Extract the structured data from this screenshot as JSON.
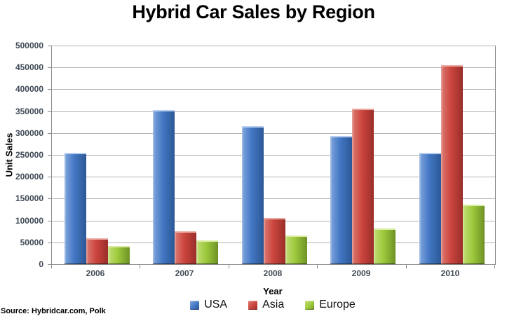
{
  "source_note": "Source: Hybridcar.com, Polk",
  "chart_data": {
    "type": "bar",
    "title": "Hybrid Car Sales by Region",
    "xlabel": "Year",
    "ylabel": "Unit Sales",
    "categories": [
      "2006",
      "2007",
      "2008",
      "2009",
      "2010"
    ],
    "series": [
      {
        "name": "USA",
        "color": "#4377c4",
        "color_light": "#7fa5dc",
        "color_dark": "#2b5795",
        "color_top": "#b5cdf0",
        "values": [
          255000,
          353000,
          315000,
          293000,
          255000
        ]
      },
      {
        "name": "Asia",
        "color": "#cb453e",
        "color_light": "#dc7a71",
        "color_dark": "#9a2e2a",
        "color_top": "#eba8a0",
        "values": [
          60000,
          75000,
          105000,
          355000,
          455000
        ]
      },
      {
        "name": "Europe",
        "color": "#9cc93c",
        "color_light": "#c3de76",
        "color_dark": "#6e9226",
        "color_top": "#d9eb9e",
        "values": [
          42000,
          54000,
          65000,
          82000,
          137000
        ]
      }
    ],
    "ylim": [
      0,
      500000
    ],
    "ytick_step": 50000,
    "yticks": [
      0,
      50000,
      100000,
      150000,
      200000,
      250000,
      300000,
      350000,
      400000,
      450000,
      500000
    ],
    "grid": true,
    "legend_position": "bottom",
    "grid_color": "#b3b3b3",
    "axis_color": "#8c8c8c",
    "tick_label_color": "#3f4a56"
  }
}
